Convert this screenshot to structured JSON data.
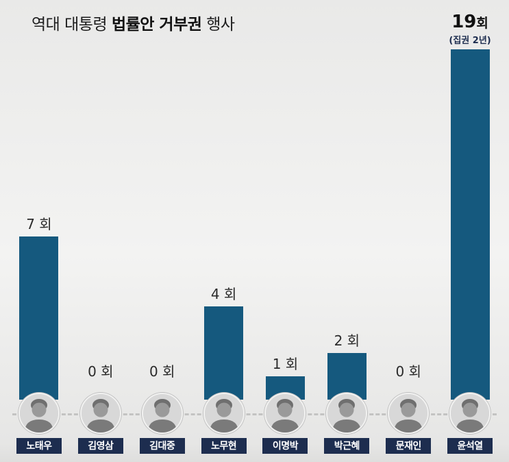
{
  "title": {
    "part1": "역대 대통령",
    "part2": "법률안 거부권",
    "part3": "행사"
  },
  "chart_data": {
    "type": "bar",
    "title": "역대 대통령 법률안 거부권 행사",
    "categories": [
      "노태우",
      "김영삼",
      "김대중",
      "노무현",
      "이명박",
      "박근혜",
      "문재인",
      "윤석열"
    ],
    "values": [
      7,
      0,
      0,
      4,
      1,
      2,
      0,
      19
    ],
    "unit": "회",
    "ylim": [
      0,
      19
    ],
    "grid": false,
    "legend": "none",
    "bar_color": "#15597e",
    "name_label_bg": "#1d2d4f",
    "annotation_color": "#1d2d4f",
    "bars": [
      {
        "name": "노태우",
        "value": 7,
        "label": "7 회"
      },
      {
        "name": "김영삼",
        "value": 0,
        "label": "0 회"
      },
      {
        "name": "김대중",
        "value": 0,
        "label": "0 회"
      },
      {
        "name": "노무현",
        "value": 4,
        "label": "4 회"
      },
      {
        "name": "이명박",
        "value": 1,
        "label": "1 회"
      },
      {
        "name": "박근혜",
        "value": 2,
        "label": "2 회"
      },
      {
        "name": "문재인",
        "value": 0,
        "label": "0 회"
      },
      {
        "name": "윤석열",
        "value": 19,
        "label": "19",
        "unit": "회",
        "annotation": "(집권 2년)",
        "highlight": true
      }
    ]
  }
}
